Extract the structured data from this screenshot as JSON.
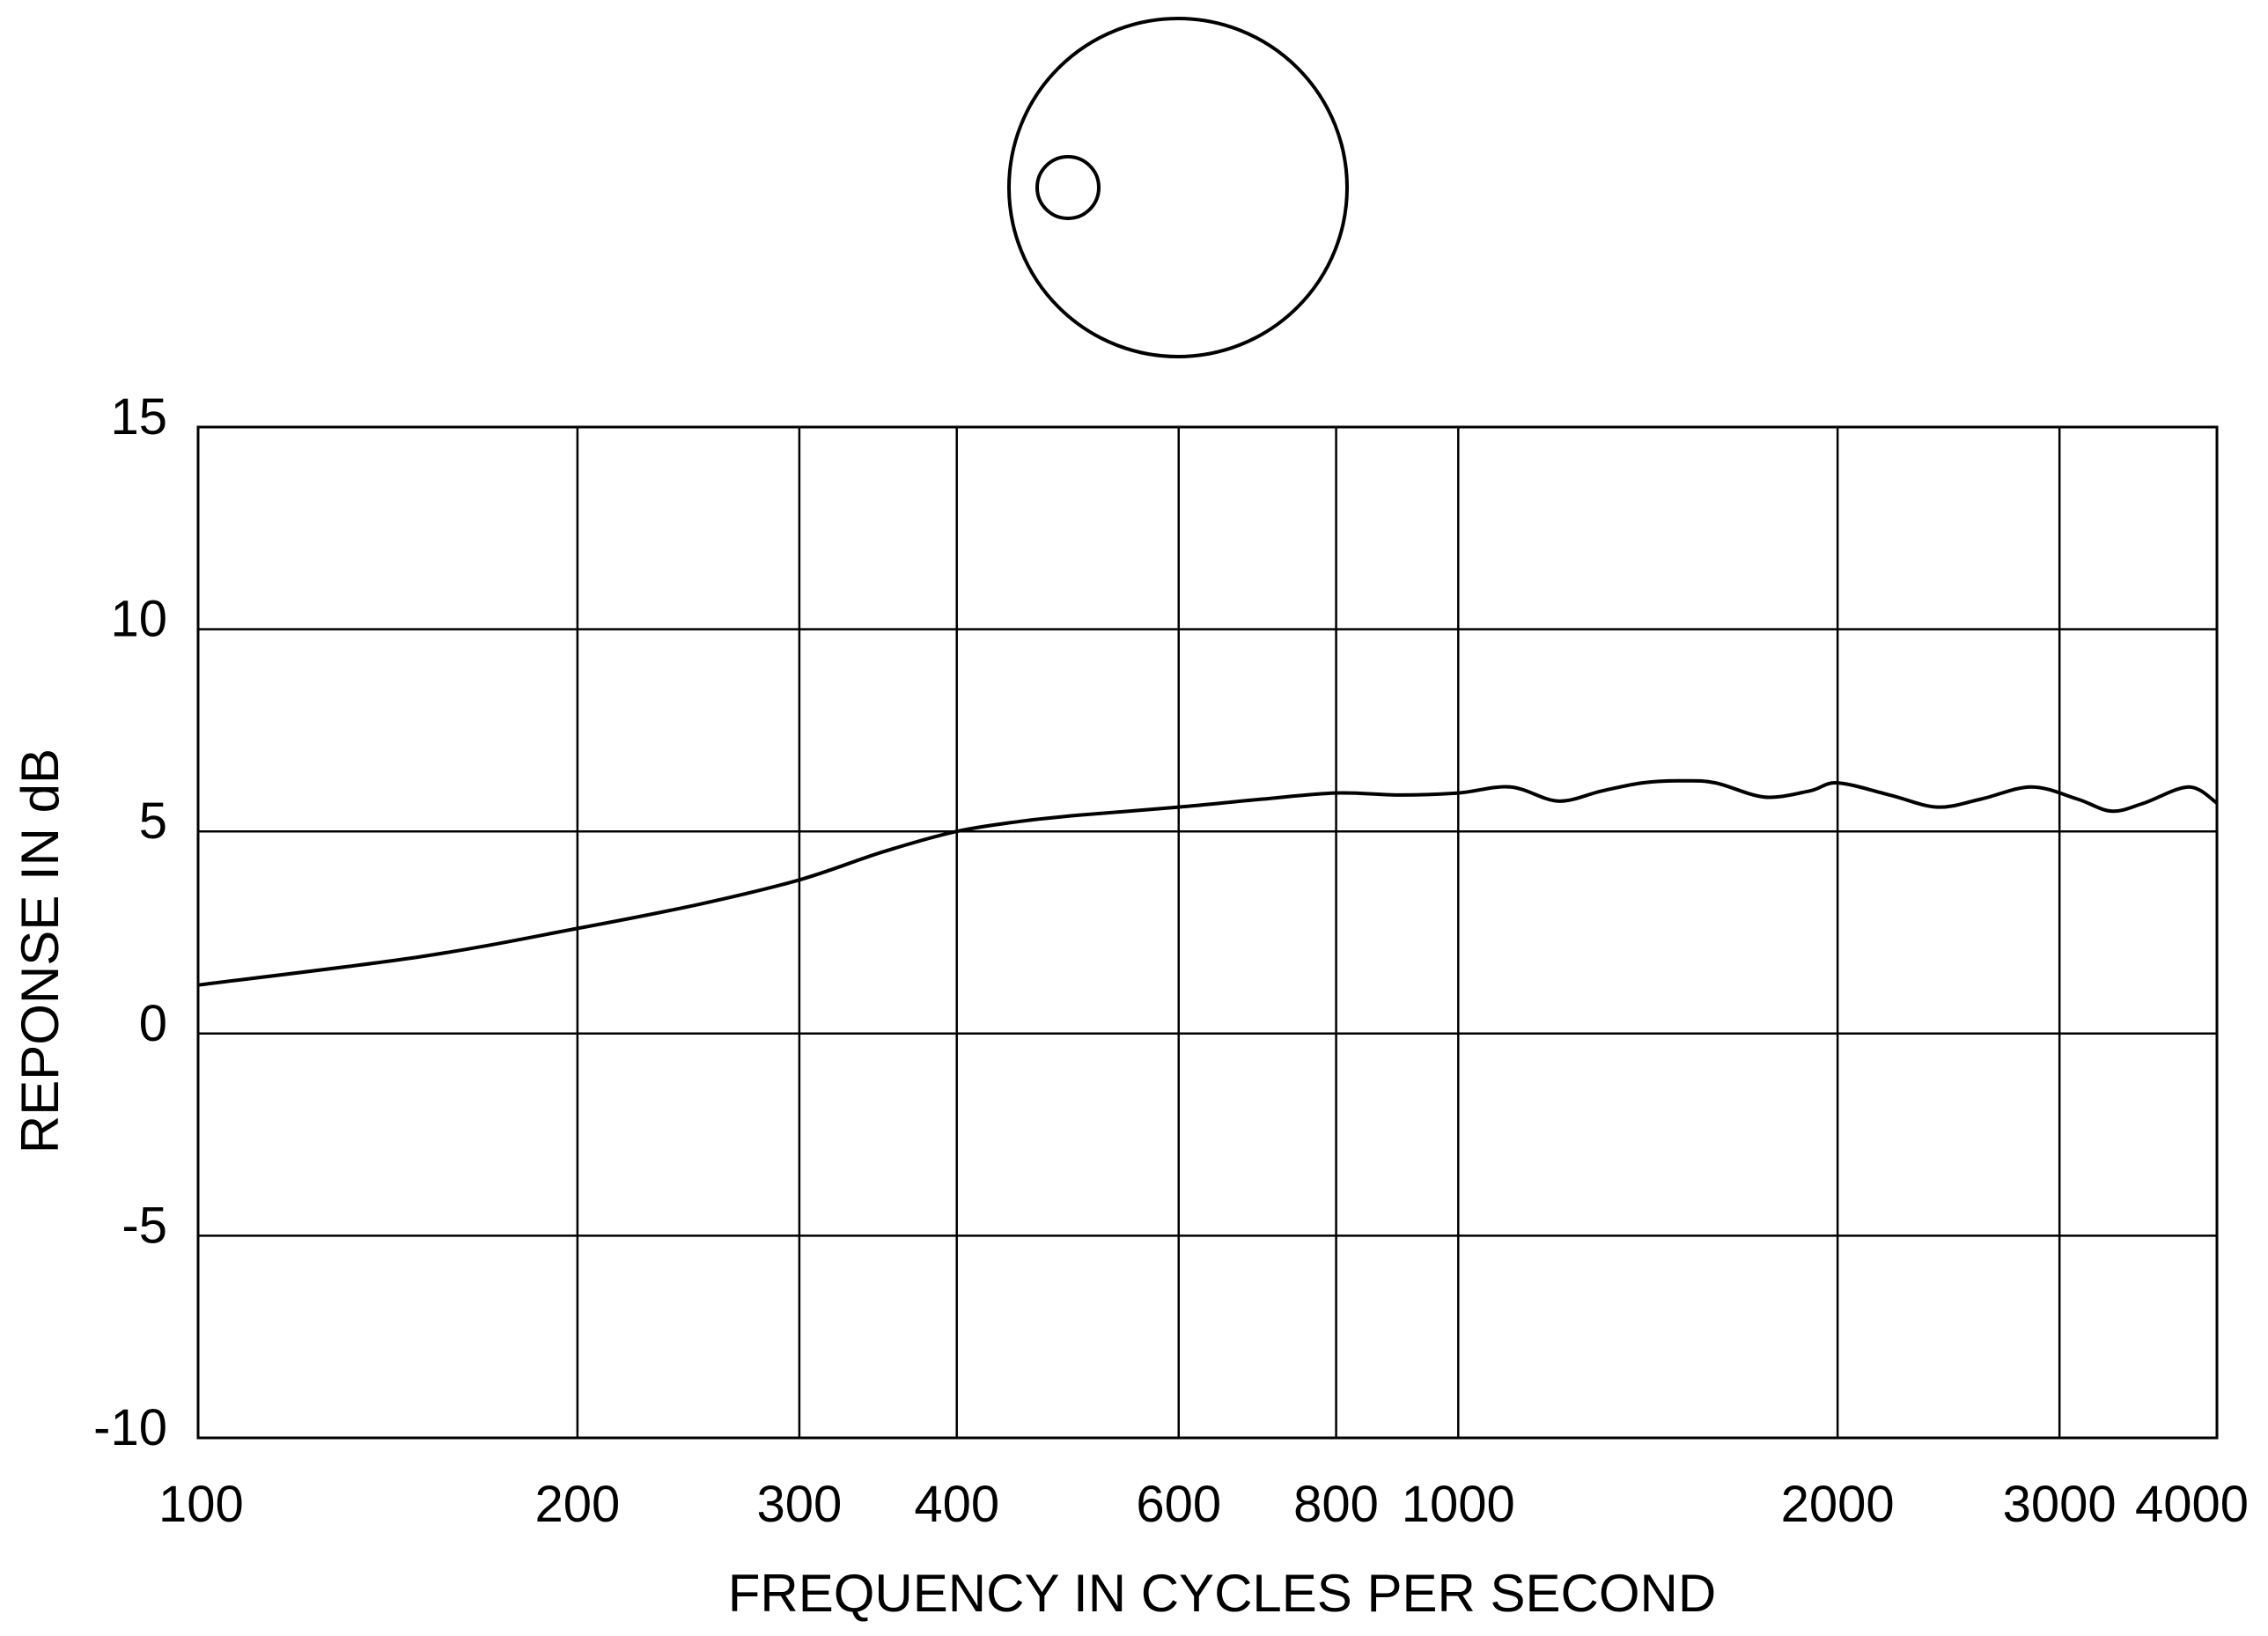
{
  "chart_data": {
    "type": "line",
    "title": "",
    "xlabel": "FREQUENCY IN CYCLES PER SECOND",
    "ylabel": "REPONSE IN dB",
    "x_scale": "log",
    "xlim": [
      100,
      4000
    ],
    "ylim": [
      -10,
      15
    ],
    "grid": true,
    "x_ticks": [
      100,
      200,
      300,
      400,
      600,
      800,
      1000,
      2000,
      3000,
      4000
    ],
    "x_tick_labels": [
      "100",
      "200",
      "300",
      "400",
      "600",
      "800",
      "1000",
      "2000",
      "3000",
      "4000"
    ],
    "y_ticks": [
      15,
      10,
      5,
      0,
      -5,
      -10
    ],
    "y_tick_labels": [
      "15",
      "10",
      "5",
      "0",
      "-5",
      "-10"
    ],
    "series": [
      {
        "x": [
          100,
          150,
          200,
          250,
          300,
          350,
          400,
          450,
          500,
          600,
          700,
          800,
          900,
          1000,
          1100,
          1200,
          1300,
          1400,
          1500,
          1600,
          1750,
          1900,
          2000,
          2200,
          2400,
          2600,
          2850,
          3100,
          3300,
          3500,
          3800,
          4000
        ],
        "y": [
          1.2,
          1.9,
          2.6,
          3.2,
          3.8,
          4.5,
          5.0,
          5.25,
          5.4,
          5.6,
          5.8,
          5.95,
          5.9,
          5.95,
          6.1,
          5.75,
          6.0,
          6.2,
          6.25,
          6.2,
          5.85,
          6.0,
          6.2,
          5.9,
          5.6,
          5.8,
          6.1,
          5.8,
          5.5,
          5.7,
          6.1,
          5.7
        ]
      }
    ]
  },
  "icon": {
    "name": "polar-pattern-diagram-icon"
  }
}
